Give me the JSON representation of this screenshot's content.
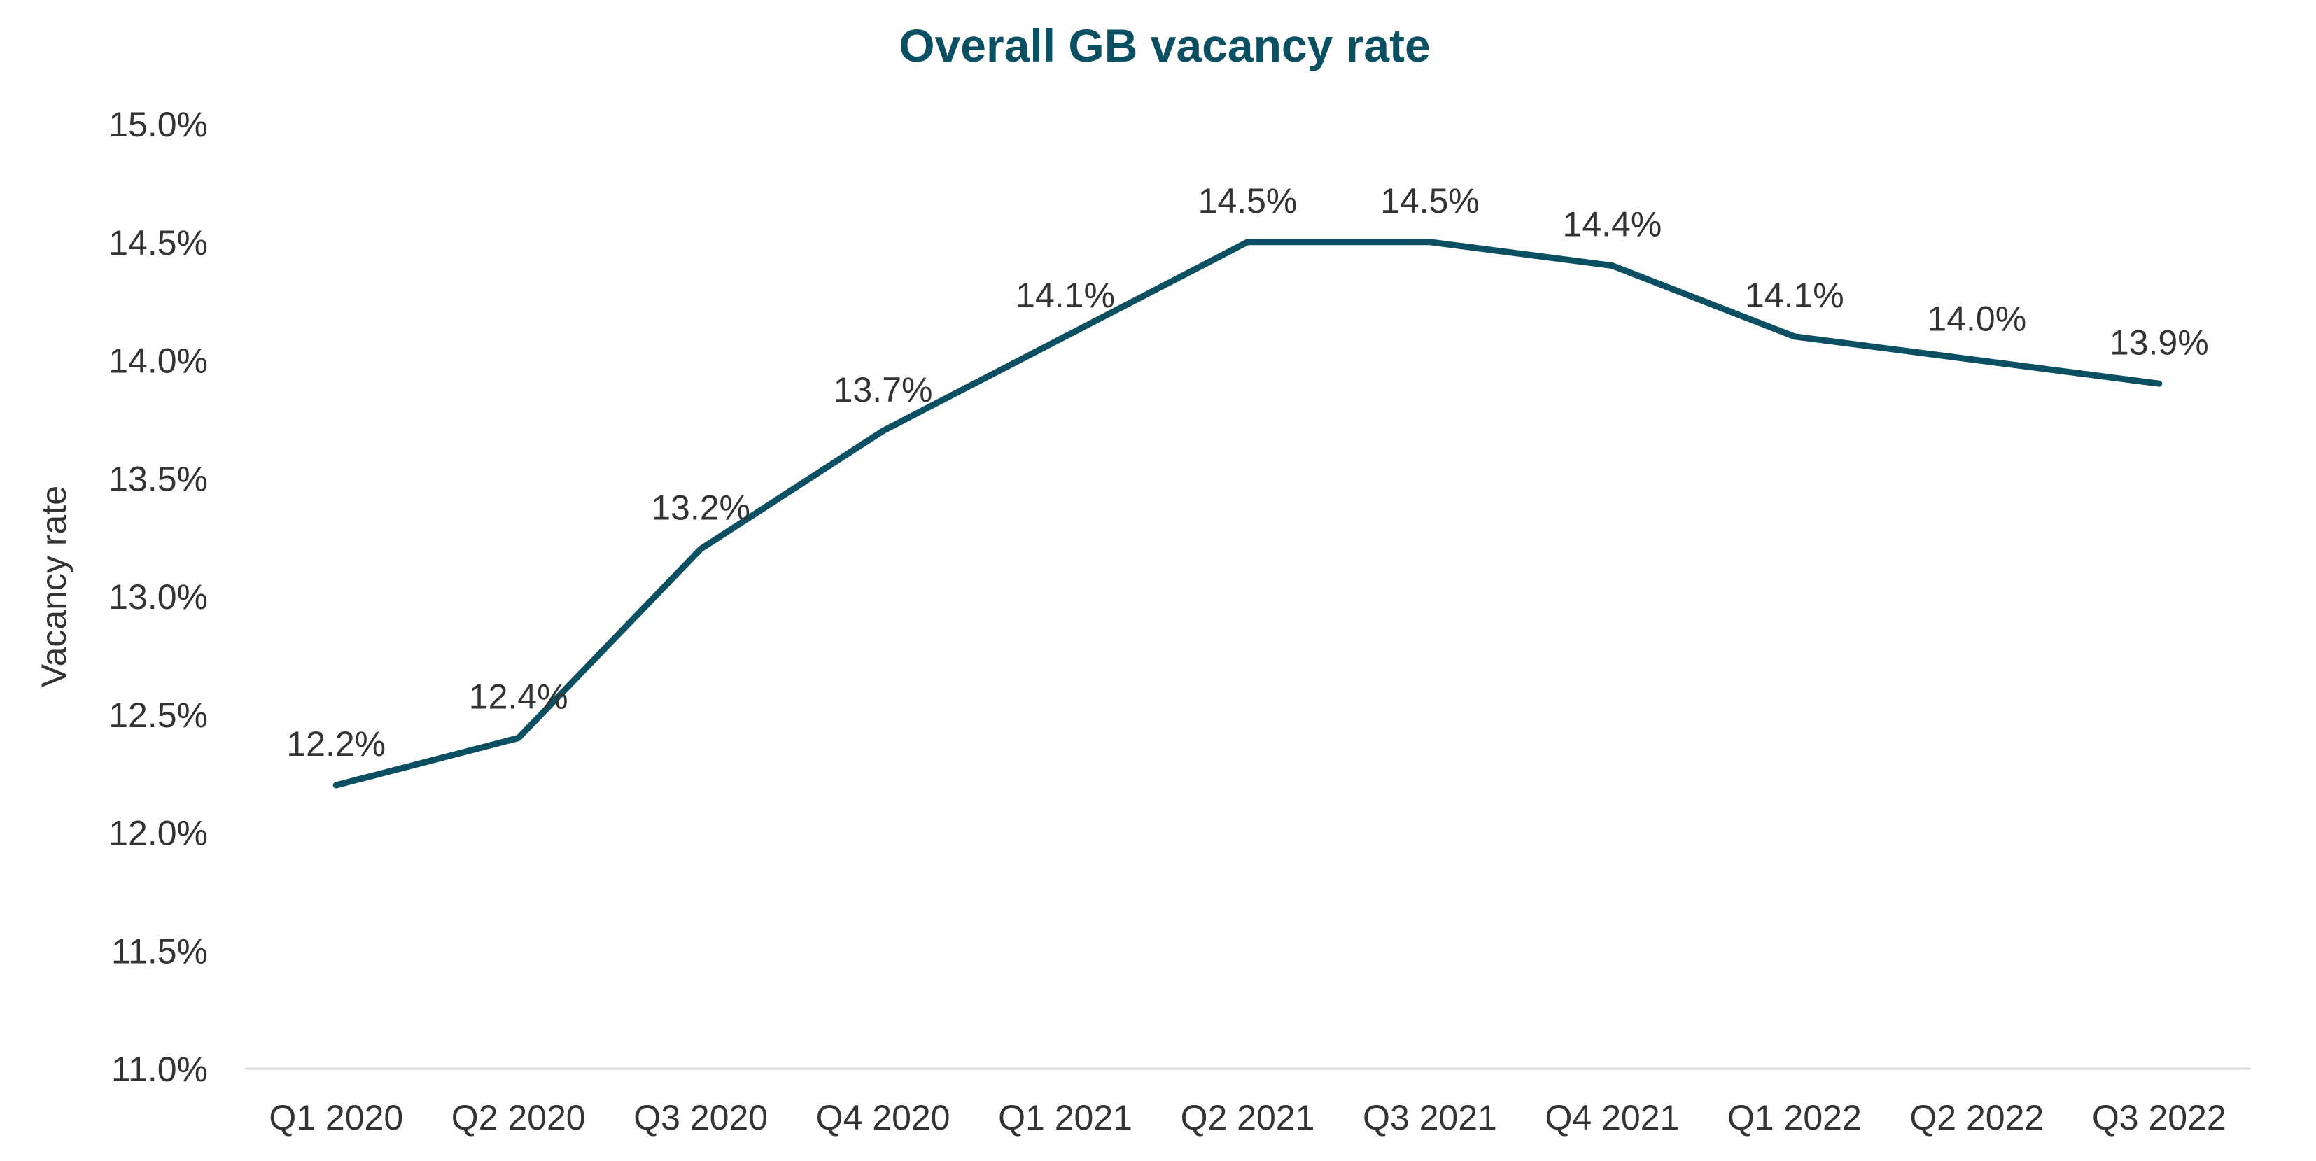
{
  "chart_data": {
    "type": "line",
    "title": "Overall GB vacancy rate",
    "xlabel": "",
    "ylabel": "Vacancy rate",
    "categories": [
      "Q1 2020",
      "Q2 2020",
      "Q3 2020",
      "Q4 2020",
      "Q1 2021",
      "Q2 2021",
      "Q3 2021",
      "Q4 2021",
      "Q1 2022",
      "Q2 2022",
      "Q3 2022"
    ],
    "series": [
      {
        "values": [
          12.2,
          12.4,
          13.2,
          13.7,
          14.1,
          14.5,
          14.5,
          14.4,
          14.1,
          14.0,
          13.9
        ],
        "labels": [
          "12.2%",
          "12.4%",
          "13.2%",
          "13.7%",
          "14.1%",
          "14.5%",
          "14.5%",
          "14.4%",
          "14.1%",
          "14.0%",
          "13.9%"
        ]
      }
    ],
    "ylim": [
      11.0,
      15.0
    ],
    "yticks": [
      11.0,
      11.5,
      12.0,
      12.5,
      13.0,
      13.5,
      14.0,
      14.5,
      15.0
    ],
    "ytick_labels": [
      "11.0%",
      "11.5%",
      "12.0%",
      "12.5%",
      "13.0%",
      "13.5%",
      "14.0%",
      "14.5%",
      "15.0%"
    ],
    "grid": false,
    "legend": "none",
    "colors": {
      "line": "#0b4f62",
      "title": "#0b4f62",
      "baseline": "#d9d9d9"
    }
  }
}
